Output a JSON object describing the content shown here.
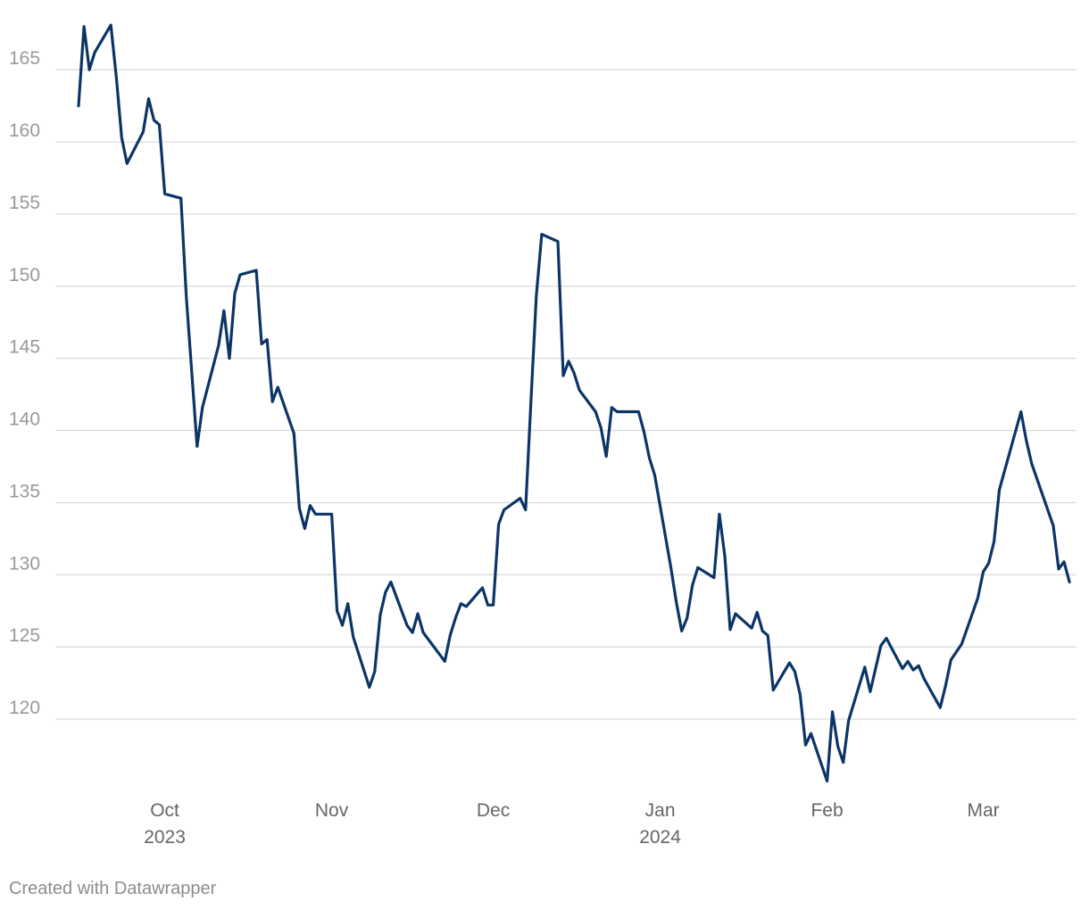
{
  "chart_data": {
    "type": "line",
    "title": "",
    "xlabel": "",
    "ylabel": "",
    "y_ticks": [
      120,
      125,
      130,
      135,
      140,
      145,
      150,
      155,
      160,
      165
    ],
    "ylim": [
      115.3,
      168.6
    ],
    "xlim": [
      "2023-09-14",
      "2024-03-15"
    ],
    "x_ticks": [
      {
        "date": "2023-10-01",
        "label": "Oct",
        "sublabel": "2023"
      },
      {
        "date": "2023-11-01",
        "label": "Nov",
        "sublabel": ""
      },
      {
        "date": "2023-12-01",
        "label": "Dec",
        "sublabel": ""
      },
      {
        "date": "2024-01-01",
        "label": "Jan",
        "sublabel": "2024"
      },
      {
        "date": "2024-02-01",
        "label": "Feb",
        "sublabel": ""
      },
      {
        "date": "2024-03-01",
        "label": "Mar",
        "sublabel": ""
      }
    ],
    "grid": true,
    "series": [
      {
        "color": "#0b3566",
        "points": [
          [
            "2023-09-15",
            162.5
          ],
          [
            "2023-09-16",
            168.0
          ],
          [
            "2023-09-17",
            165.0
          ],
          [
            "2023-09-18",
            166.2
          ],
          [
            "2023-09-21",
            168.1
          ],
          [
            "2023-09-22",
            164.5
          ],
          [
            "2023-09-23",
            160.3
          ],
          [
            "2023-09-24",
            158.5
          ],
          [
            "2023-09-27",
            160.7
          ],
          [
            "2023-09-28",
            163.0
          ],
          [
            "2023-09-29",
            161.5
          ],
          [
            "2023-09-30",
            161.2
          ],
          [
            "2023-10-01",
            156.4
          ],
          [
            "2023-10-04",
            156.1
          ],
          [
            "2023-10-05",
            149.3
          ],
          [
            "2023-10-07",
            138.9
          ],
          [
            "2023-10-08",
            141.6
          ],
          [
            "2023-10-11",
            145.9
          ],
          [
            "2023-10-12",
            148.3
          ],
          [
            "2023-10-13",
            145.0
          ],
          [
            "2023-10-14",
            149.5
          ],
          [
            "2023-10-15",
            150.8
          ],
          [
            "2023-10-18",
            151.1
          ],
          [
            "2023-10-19",
            146.0
          ],
          [
            "2023-10-20",
            146.3
          ],
          [
            "2023-10-21",
            142.0
          ],
          [
            "2023-10-22",
            143.0
          ],
          [
            "2023-10-25",
            139.8
          ],
          [
            "2023-10-26",
            134.6
          ],
          [
            "2023-10-27",
            133.2
          ],
          [
            "2023-10-28",
            134.8
          ],
          [
            "2023-10-29",
            134.2
          ],
          [
            "2023-11-01",
            134.2
          ],
          [
            "2023-11-02",
            127.5
          ],
          [
            "2023-11-03",
            126.5
          ],
          [
            "2023-11-04",
            128.0
          ],
          [
            "2023-11-05",
            125.7
          ],
          [
            "2023-11-08",
            122.2
          ],
          [
            "2023-11-09",
            123.3
          ],
          [
            "2023-11-10",
            127.2
          ],
          [
            "2023-11-11",
            128.8
          ],
          [
            "2023-11-12",
            129.5
          ],
          [
            "2023-11-15",
            126.5
          ],
          [
            "2023-11-16",
            126.0
          ],
          [
            "2023-11-17",
            127.3
          ],
          [
            "2023-11-18",
            126.0
          ],
          [
            "2023-11-22",
            124.0
          ],
          [
            "2023-11-23",
            125.8
          ],
          [
            "2023-11-24",
            127.0
          ],
          [
            "2023-11-25",
            128.0
          ],
          [
            "2023-11-26",
            127.8
          ],
          [
            "2023-11-29",
            129.1
          ],
          [
            "2023-11-30",
            127.9
          ],
          [
            "2023-12-01",
            127.9
          ],
          [
            "2023-12-02",
            133.5
          ],
          [
            "2023-12-03",
            134.5
          ],
          [
            "2023-12-06",
            135.3
          ],
          [
            "2023-12-07",
            134.5
          ],
          [
            "2023-12-08",
            142.0
          ],
          [
            "2023-12-09",
            149.3
          ],
          [
            "2023-12-10",
            153.6
          ],
          [
            "2023-12-13",
            153.1
          ],
          [
            "2023-12-14",
            143.8
          ],
          [
            "2023-12-15",
            144.8
          ],
          [
            "2023-12-16",
            144.0
          ],
          [
            "2023-12-17",
            142.8
          ],
          [
            "2023-12-20",
            141.3
          ],
          [
            "2023-12-21",
            140.2
          ],
          [
            "2023-12-22",
            138.2
          ],
          [
            "2023-12-23",
            141.6
          ],
          [
            "2023-12-24",
            141.3
          ],
          [
            "2023-12-28",
            141.3
          ],
          [
            "2023-12-29",
            139.9
          ],
          [
            "2023-12-30",
            138.1
          ],
          [
            "2023-12-31",
            136.9
          ],
          [
            "2024-01-03",
            130.5
          ],
          [
            "2024-01-04",
            128.1
          ],
          [
            "2024-01-05",
            126.1
          ],
          [
            "2024-01-06",
            127.0
          ],
          [
            "2024-01-07",
            129.3
          ],
          [
            "2024-01-08",
            130.5
          ],
          [
            "2024-01-11",
            129.8
          ],
          [
            "2024-01-12",
            134.2
          ],
          [
            "2024-01-13",
            131.3
          ],
          [
            "2024-01-14",
            126.2
          ],
          [
            "2024-01-15",
            127.3
          ],
          [
            "2024-01-18",
            126.3
          ],
          [
            "2024-01-19",
            127.4
          ],
          [
            "2024-01-20",
            126.1
          ],
          [
            "2024-01-21",
            125.8
          ],
          [
            "2024-01-22",
            122.0
          ],
          [
            "2024-01-25",
            123.9
          ],
          [
            "2024-01-26",
            123.3
          ],
          [
            "2024-01-27",
            121.7
          ],
          [
            "2024-01-28",
            118.2
          ],
          [
            "2024-01-29",
            119.0
          ],
          [
            "2024-02-01",
            115.7
          ],
          [
            "2024-02-02",
            120.5
          ],
          [
            "2024-02-03",
            118.1
          ],
          [
            "2024-02-04",
            117.0
          ],
          [
            "2024-02-05",
            119.9
          ],
          [
            "2024-02-08",
            123.6
          ],
          [
            "2024-02-09",
            121.9
          ],
          [
            "2024-02-11",
            125.1
          ],
          [
            "2024-02-12",
            125.6
          ],
          [
            "2024-02-15",
            123.5
          ],
          [
            "2024-02-16",
            124.0
          ],
          [
            "2024-02-17",
            123.4
          ],
          [
            "2024-02-18",
            123.7
          ],
          [
            "2024-02-19",
            122.8
          ],
          [
            "2024-02-22",
            120.8
          ],
          [
            "2024-02-23",
            122.3
          ],
          [
            "2024-02-24",
            124.1
          ],
          [
            "2024-02-26",
            125.2
          ],
          [
            "2024-02-29",
            128.4
          ],
          [
            "2024-03-01",
            130.2
          ],
          [
            "2024-03-02",
            130.8
          ],
          [
            "2024-03-03",
            132.3
          ],
          [
            "2024-03-04",
            135.9
          ],
          [
            "2024-03-08",
            141.3
          ],
          [
            "2024-03-09",
            139.3
          ],
          [
            "2024-03-10",
            137.7
          ],
          [
            "2024-03-14",
            133.4
          ],
          [
            "2024-03-15",
            130.4
          ],
          [
            "2024-03-16",
            130.9
          ],
          [
            "2024-03-17",
            129.5
          ]
        ]
      }
    ]
  },
  "footer": {
    "credit": "Created with Datawrapper"
  }
}
